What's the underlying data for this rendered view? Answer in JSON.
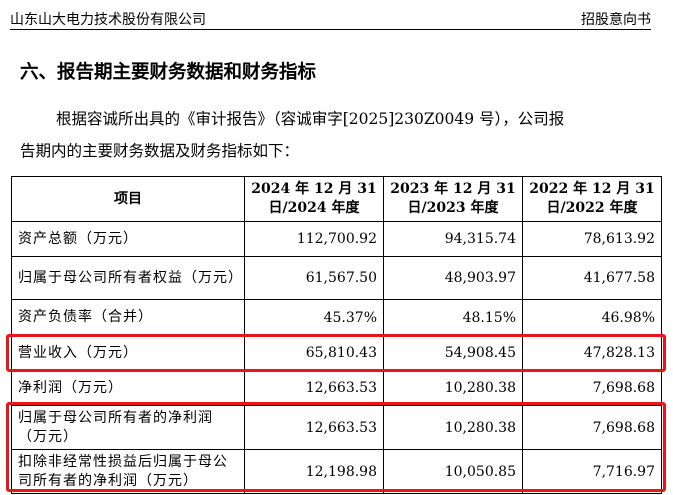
{
  "header": {
    "company": "山东山大电力技术股份有限公司",
    "doc_type": "招股意向书"
  },
  "section": {
    "title": "六、报告期主要财务数据和财务指标"
  },
  "intro": {
    "line1": "根据容诚所出具的《审计报告》（容诚审字[2025]230Z0049 号），公司报",
    "line2": "告期内的主要财务数据及财务指标如下："
  },
  "table": {
    "headers": [
      "项目",
      "2024 年 12 月 31 日/2024 年度",
      "2023 年 12 月 31 日/2023 年度",
      "2022 年 12 月 31 日/2022 年度"
    ],
    "rows": [
      {
        "label": "资产总额（万元）",
        "v2024": "112,700.92",
        "v2023": "94,315.74",
        "v2022": "78,613.92"
      },
      {
        "label": "归属于母公司所有者权益（万元）",
        "v2024": "61,567.50",
        "v2023": "48,903.97",
        "v2022": "41,677.58"
      },
      {
        "label": "资产负债率（合并）",
        "v2024": "45.37%",
        "v2023": "48.15%",
        "v2022": "46.98%"
      },
      {
        "label": "营业收入（万元）",
        "v2024": "65,810.43",
        "v2023": "54,908.45",
        "v2022": "47,828.13"
      },
      {
        "label": "净利润（万元）",
        "v2024": "12,663.53",
        "v2023": "10,280.38",
        "v2022": "7,698.68"
      },
      {
        "label": "归属于母公司所有者的净利润（万元）",
        "v2024": "12,663.53",
        "v2023": "10,280.38",
        "v2022": "7,698.68"
      },
      {
        "label": "扣除非经常性损益后归属于母公司所有者的净利润（万元）",
        "v2024": "12,198.98",
        "v2023": "10,050.85",
        "v2022": "7,716.97"
      }
    ]
  },
  "highlight_color": "#e81616"
}
